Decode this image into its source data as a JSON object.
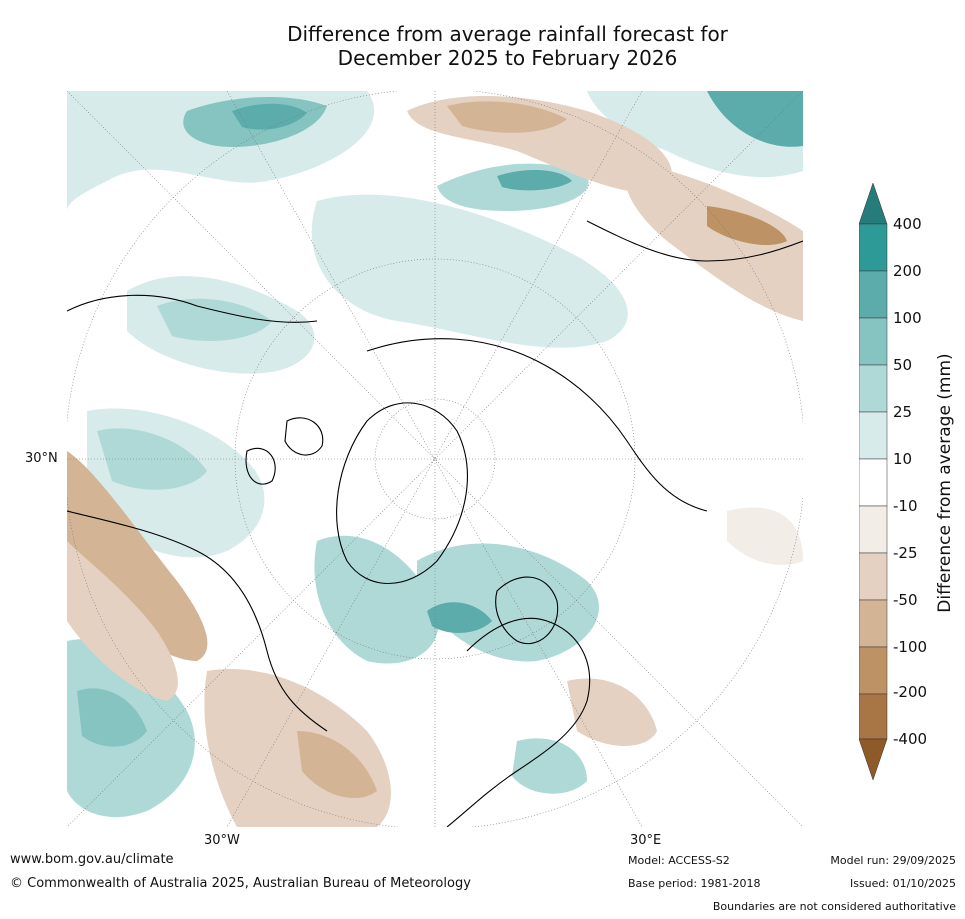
{
  "title": {
    "line1": "Difference from average rainfall forecast for",
    "line2": "December 2025 to February 2026"
  },
  "map": {
    "projection": "north-polar-stereographic",
    "lat_labels": [
      "30°N"
    ],
    "lon_labels": [
      "30°W",
      "30°E"
    ]
  },
  "colorbar": {
    "label": "Difference from average (mm)",
    "ticks": [
      "400",
      "200",
      "100",
      "50",
      "25",
      "10",
      "-10",
      "-25",
      "-50",
      "-100",
      "-200",
      "-400"
    ],
    "colors": {
      "gt400": "#267c7a",
      "200_400": "#2e9a97",
      "100_200": "#5cacab",
      "50_100": "#86c4c2",
      "25_50": "#afd9d7",
      "10_25": "#d7ebea",
      "neutral": "#ffffff",
      "m10_m25": "#f2ede7",
      "m25_m50": "#e4d1c1",
      "m50_m100": "#d3b596",
      "m100_m200": "#bd9264",
      "m200_m400": "#a87644",
      "lt_m400": "#8e5a28"
    }
  },
  "footer": {
    "website": "www.bom.gov.au/climate",
    "copyright": "© Commonwealth of Australia 2025, Australian Bureau of Meteorology",
    "model": "Model: ACCESS-S2",
    "base_period": "Base period: 1981-2018",
    "model_run": "Model run: 29/09/2025",
    "issued": "Issued: 01/10/2025",
    "disclaimer": "Boundaries are not considered authoritative"
  }
}
